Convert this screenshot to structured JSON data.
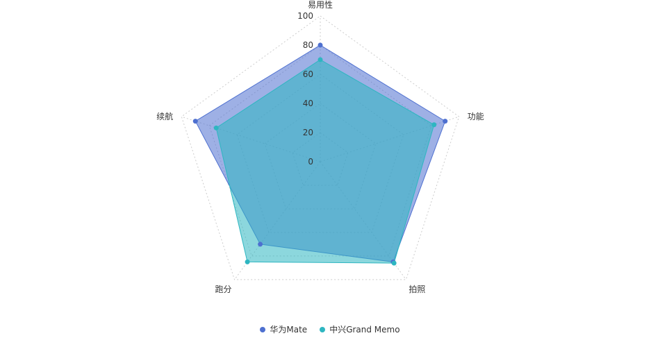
{
  "chart_data": {
    "type": "radar",
    "title": "",
    "indicators": [
      "易用性",
      "功能",
      "拍照",
      "跑分",
      "续航"
    ],
    "max": 100,
    "ticks": [
      "0",
      "20",
      "40",
      "60",
      "80",
      "100"
    ],
    "series": [
      {
        "name": "华为Mate",
        "values": [
          80,
          90,
          85,
          70,
          90
        ],
        "color": "#4e70d0",
        "fill": "rgba(78,112,208,0.55)"
      },
      {
        "name": "中兴Grand Memo",
        "values": [
          70,
          82,
          86,
          85,
          75
        ],
        "color": "#2eb6c1",
        "fill": "rgba(46,182,193,0.55)"
      }
    ],
    "grid": "dotted",
    "legend_position": "bottom-center"
  }
}
